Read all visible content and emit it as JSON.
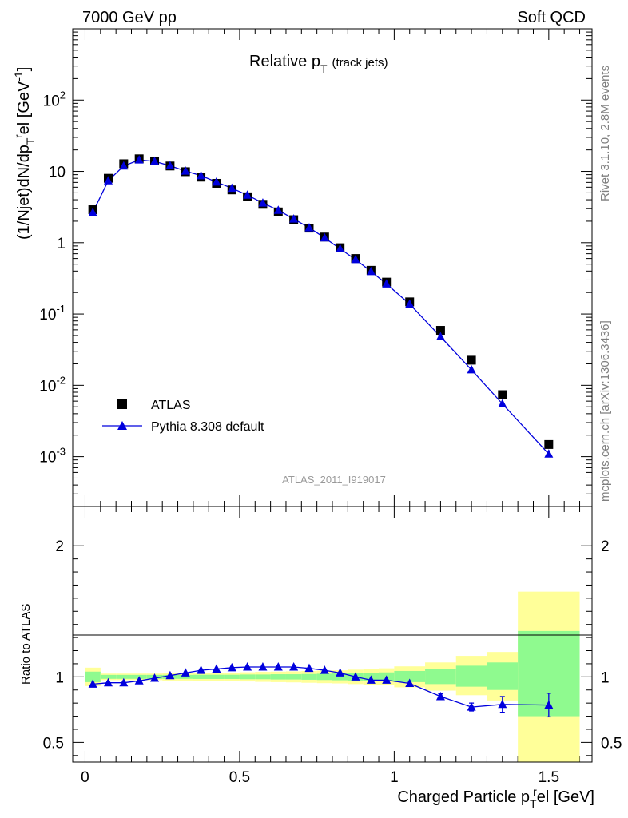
{
  "header": {
    "left_label": "7000 GeV pp",
    "right_label": "Soft QCD"
  },
  "side_text": {
    "rivet": "Rivet 3.1.10,  2.8M events",
    "mcplots": "mcplots.cern.ch [arXiv:1306.3436]"
  },
  "colors": {
    "mc": "#0000dd",
    "band_stat": "#8ffa8f",
    "band_total": "#ffff99",
    "data": "#000000",
    "watermark": "#999999"
  },
  "chart_data": [
    {
      "type": "scatter",
      "panel": "main",
      "title": "Relative p",
      "title_sub": "T",
      "title_note": "(track jets)",
      "ylabel": "(1/Njet)dN/dp",
      "ylabel_sub": "T",
      "ylabel_mid": "r",
      "ylabel_end": "el [GeV",
      "ylabel_sup": "-1",
      "ylabel_close": "]",
      "yscale": "log",
      "ylim": [
        0.0002,
        1000
      ],
      "xlim": [
        -0.04,
        1.64
      ],
      "ytick_labels": [
        {
          "base": "10",
          "exp": "-3",
          "v": 0.001
        },
        {
          "base": "10",
          "exp": "-2",
          "v": 0.01
        },
        {
          "base": "10",
          "exp": "-1",
          "v": 0.1
        },
        {
          "base": "1",
          "exp": "",
          "v": 1
        },
        {
          "base": "10",
          "exp": "",
          "v": 10
        },
        {
          "base": "10",
          "exp": "2",
          "v": 100
        }
      ],
      "watermark": "ATLAS_2011_I919017",
      "legend": {
        "position": "lower-left",
        "entries": [
          {
            "label": "ATLAS",
            "marker": "square"
          },
          {
            "label": "Pythia 8.308 default",
            "marker": "triangle-line"
          }
        ]
      },
      "x": [
        0.025,
        0.075,
        0.125,
        0.175,
        0.225,
        0.275,
        0.325,
        0.375,
        0.425,
        0.475,
        0.525,
        0.575,
        0.625,
        0.675,
        0.725,
        0.775,
        0.825,
        0.875,
        0.925,
        0.975,
        1.05,
        1.15,
        1.25,
        1.35,
        1.5
      ],
      "series": [
        {
          "name": "ATLAS",
          "values": [
            2.9,
            8.0,
            12.8,
            15.0,
            14.0,
            11.9,
            9.9,
            8.3,
            6.8,
            5.5,
            4.4,
            3.45,
            2.7,
            2.1,
            1.6,
            1.2,
            0.85,
            0.6,
            0.41,
            0.28,
            0.148,
            0.059,
            0.0225,
            0.0074,
            0.00148
          ]
        },
        {
          "name": "Pythia 8.308 default",
          "values": [
            2.65,
            7.4,
            11.9,
            14.5,
            13.8,
            12.0,
            10.1,
            8.7,
            7.1,
            5.8,
            4.65,
            3.6,
            2.85,
            2.15,
            1.62,
            1.17,
            0.82,
            0.58,
            0.395,
            0.264,
            0.138,
            0.048,
            0.0165,
            0.0055,
            0.00109
          ]
        }
      ]
    },
    {
      "type": "scatter",
      "panel": "ratio",
      "ylabel": "Ratio to ATLAS",
      "ylim": [
        0.35,
        2.3
      ],
      "xlim": [
        -0.04,
        1.64
      ],
      "xlabel": "Charged Particle p",
      "xlabel_sub": "T",
      "xlabel_mid": "r",
      "xlabel_end": "el [GeV]",
      "ytick_labels": [
        "0.5",
        "1",
        "2"
      ],
      "ytick_values": [
        0.5,
        1,
        2
      ],
      "xtick_labels": [
        "0",
        "0.5",
        "1",
        "1.5"
      ],
      "xtick_values": [
        0,
        0.5,
        1,
        1.5
      ],
      "bins": [
        {
          "lo": 0.0,
          "hi": 0.05,
          "stat_lo": 0.96,
          "stat_hi": 1.04,
          "tot_lo": 0.93,
          "tot_hi": 1.07
        },
        {
          "lo": 0.05,
          "hi": 0.1,
          "stat_lo": 0.985,
          "stat_hi": 1.015,
          "tot_lo": 0.975,
          "tot_hi": 1.025
        },
        {
          "lo": 0.1,
          "hi": 0.15,
          "stat_lo": 0.985,
          "stat_hi": 1.015,
          "tot_lo": 0.975,
          "tot_hi": 1.025
        },
        {
          "lo": 0.15,
          "hi": 0.2,
          "stat_lo": 0.985,
          "stat_hi": 1.015,
          "tot_lo": 0.975,
          "tot_hi": 1.025
        },
        {
          "lo": 0.2,
          "hi": 0.25,
          "stat_lo": 0.985,
          "stat_hi": 1.015,
          "tot_lo": 0.975,
          "tot_hi": 1.025
        },
        {
          "lo": 0.25,
          "hi": 0.3,
          "stat_lo": 0.985,
          "stat_hi": 1.015,
          "tot_lo": 0.972,
          "tot_hi": 1.028
        },
        {
          "lo": 0.3,
          "hi": 0.35,
          "stat_lo": 0.985,
          "stat_hi": 1.015,
          "tot_lo": 0.972,
          "tot_hi": 1.028
        },
        {
          "lo": 0.35,
          "hi": 0.4,
          "stat_lo": 0.984,
          "stat_hi": 1.016,
          "tot_lo": 0.97,
          "tot_hi": 1.03
        },
        {
          "lo": 0.4,
          "hi": 0.45,
          "stat_lo": 0.984,
          "stat_hi": 1.016,
          "tot_lo": 0.97,
          "tot_hi": 1.03
        },
        {
          "lo": 0.45,
          "hi": 0.5,
          "stat_lo": 0.984,
          "stat_hi": 1.016,
          "tot_lo": 0.968,
          "tot_hi": 1.032
        },
        {
          "lo": 0.5,
          "hi": 0.55,
          "stat_lo": 0.982,
          "stat_hi": 1.018,
          "tot_lo": 0.965,
          "tot_hi": 1.035
        },
        {
          "lo": 0.55,
          "hi": 0.6,
          "stat_lo": 0.982,
          "stat_hi": 1.018,
          "tot_lo": 0.962,
          "tot_hi": 1.038
        },
        {
          "lo": 0.6,
          "hi": 0.65,
          "stat_lo": 0.98,
          "stat_hi": 1.02,
          "tot_lo": 0.96,
          "tot_hi": 1.04
        },
        {
          "lo": 0.65,
          "hi": 0.7,
          "stat_lo": 0.98,
          "stat_hi": 1.02,
          "tot_lo": 0.958,
          "tot_hi": 1.042
        },
        {
          "lo": 0.7,
          "hi": 0.75,
          "stat_lo": 0.978,
          "stat_hi": 1.022,
          "tot_lo": 0.955,
          "tot_hi": 1.045
        },
        {
          "lo": 0.75,
          "hi": 0.8,
          "stat_lo": 0.976,
          "stat_hi": 1.024,
          "tot_lo": 0.952,
          "tot_hi": 1.048
        },
        {
          "lo": 0.8,
          "hi": 0.85,
          "stat_lo": 0.974,
          "stat_hi": 1.026,
          "tot_lo": 0.95,
          "tot_hi": 1.05
        },
        {
          "lo": 0.85,
          "hi": 0.9,
          "stat_lo": 0.972,
          "stat_hi": 1.028,
          "tot_lo": 0.945,
          "tot_hi": 1.055
        },
        {
          "lo": 0.9,
          "hi": 0.95,
          "stat_lo": 0.97,
          "stat_hi": 1.03,
          "tot_lo": 0.94,
          "tot_hi": 1.06
        },
        {
          "lo": 0.95,
          "hi": 1.0,
          "stat_lo": 0.966,
          "stat_hi": 1.034,
          "tot_lo": 0.935,
          "tot_hi": 1.065
        },
        {
          "lo": 1.0,
          "hi": 1.1,
          "stat_lo": 0.96,
          "stat_hi": 1.045,
          "tot_lo": 0.92,
          "tot_hi": 1.08
        },
        {
          "lo": 1.1,
          "hi": 1.2,
          "stat_lo": 0.945,
          "stat_hi": 1.06,
          "tot_lo": 0.895,
          "tot_hi": 1.11
        },
        {
          "lo": 1.2,
          "hi": 1.3,
          "stat_lo": 0.925,
          "stat_hi": 1.085,
          "tot_lo": 0.86,
          "tot_hi": 1.16
        },
        {
          "lo": 1.3,
          "hi": 1.4,
          "stat_lo": 0.9,
          "stat_hi": 1.11,
          "tot_lo": 0.82,
          "tot_hi": 1.19
        },
        {
          "lo": 1.4,
          "hi": 1.6,
          "stat_lo": 0.7,
          "stat_hi": 1.35,
          "tot_lo": 0.33,
          "tot_hi": 1.65
        }
      ],
      "x": [
        0.025,
        0.075,
        0.125,
        0.175,
        0.225,
        0.275,
        0.325,
        0.375,
        0.425,
        0.475,
        0.525,
        0.575,
        0.625,
        0.675,
        0.725,
        0.775,
        0.825,
        0.875,
        0.925,
        0.975,
        1.05,
        1.15,
        1.25,
        1.35,
        1.5
      ],
      "series": [
        {
          "name": "Pythia 8.308 default",
          "values": [
            0.945,
            0.955,
            0.955,
            0.97,
            0.99,
            1.01,
            1.03,
            1.05,
            1.06,
            1.07,
            1.075,
            1.075,
            1.075,
            1.075,
            1.065,
            1.05,
            1.03,
            1.0,
            0.975,
            0.975,
            0.95,
            0.85,
            0.77,
            0.79,
            0.785
          ],
          "err": [
            0.008,
            0.006,
            0.006,
            0.006,
            0.006,
            0.006,
            0.006,
            0.006,
            0.006,
            0.006,
            0.006,
            0.006,
            0.006,
            0.006,
            0.006,
            0.006,
            0.006,
            0.006,
            0.008,
            0.008,
            0.01,
            0.02,
            0.03,
            0.06,
            0.09
          ]
        }
      ]
    }
  ]
}
